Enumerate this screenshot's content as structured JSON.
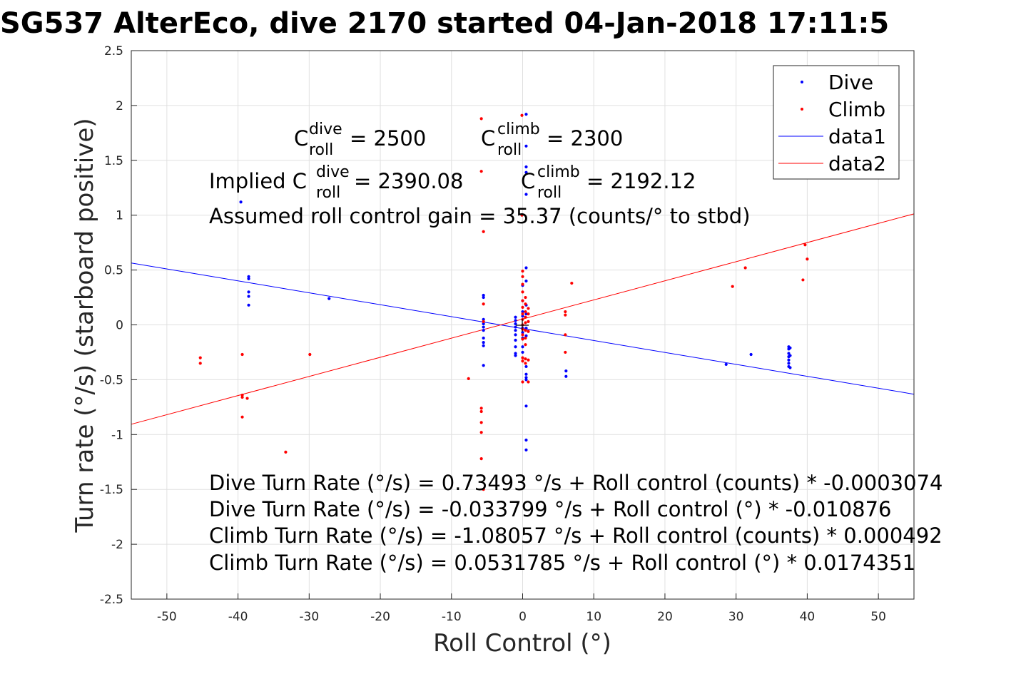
{
  "title": "SG537 AlterEco, dive 2170 started 04-Jan-2018 17:11:5",
  "annotations": {
    "c_roll_dive": {
      "base": "C",
      "sup": "dive",
      "sub": "roll",
      "rest": " = 2500"
    },
    "c_roll_climb": {
      "base": "C",
      "sup": "climb",
      "sub": "roll",
      "rest": " = 2300"
    },
    "implied_prefix": "Implied C",
    "implied_dive": {
      "sup": "dive",
      "sub": "roll",
      "rest": " = 2390.08"
    },
    "implied_climb": {
      "base": "C",
      "sup": "climb",
      "sub": "roll",
      "rest": " = 2192.12"
    },
    "gain": "Assumed roll control gain = 35.37 (counts/° to stbd)",
    "eq1": "Dive Turn Rate (°/s) = 0.73493 °/s + Roll control (counts) * -0.0003074",
    "eq2": "Dive Turn Rate (°/s) = -0.033799 °/s + Roll control (°) * -0.010876",
    "eq3": "Climb Turn Rate (°/s) = -1.08057 °/s + Roll control (counts) * 0.000492",
    "eq4": "Climb Turn Rate (°/s) = 0.0531785 °/s + Roll control (°) * 0.0174351"
  },
  "chart_data": {
    "type": "scatter",
    "xlabel": "Roll Control (°)",
    "ylabel": "Turn rate (°/s) (starboard positive)",
    "xlim": [
      -55,
      55
    ],
    "ylim": [
      -2.5,
      2.5
    ],
    "xticks": [
      -50,
      -40,
      -30,
      -20,
      -10,
      0,
      10,
      20,
      30,
      40,
      50
    ],
    "yticks": [
      2.5,
      2,
      1.5,
      1,
      0.5,
      0,
      -0.5,
      -1,
      -1.5,
      -2,
      -2.5
    ],
    "xtick_labels": [
      "-50",
      "-40",
      "-30",
      "-20",
      "-10",
      "0",
      "10",
      "20",
      "30",
      "40",
      "50"
    ],
    "ytick_labels": [
      "2.5",
      "2",
      "1.5",
      "1",
      "0.5",
      "0",
      "-0.5",
      "-1",
      "-1.5",
      "-2",
      "-2.5"
    ],
    "grid": true,
    "legend_position": "top-right",
    "legend": [
      "Dive",
      "Climb",
      "data1",
      "data2"
    ],
    "series": [
      {
        "name": "Dive",
        "kind": "points",
        "color": "#0000ff",
        "points": [
          [
            -39.6,
            1.12
          ],
          [
            -38.5,
            0.44
          ],
          [
            -38.5,
            0.42
          ],
          [
            -38.5,
            0.3
          ],
          [
            -38.5,
            0.26
          ],
          [
            -38.5,
            0.18
          ],
          [
            -27.2,
            0.24
          ],
          [
            -5.5,
            0.27
          ],
          [
            -5.5,
            0.25
          ],
          [
            -5.5,
            0.05
          ],
          [
            -5.5,
            0.01
          ],
          [
            -5.5,
            -0.02
          ],
          [
            -5.5,
            -0.05
          ],
          [
            -5.5,
            -0.12
          ],
          [
            -5.5,
            -0.16
          ],
          [
            -5.5,
            -0.19
          ],
          [
            -5.5,
            -0.37
          ],
          [
            -1.0,
            0.07
          ],
          [
            -1.0,
            0.04
          ],
          [
            -1.0,
            0.01
          ],
          [
            -1.0,
            -0.02
          ],
          [
            -1.0,
            -0.05
          ],
          [
            -1.0,
            -0.09
          ],
          [
            -1.0,
            -0.14
          ],
          [
            -1.0,
            -0.2
          ],
          [
            -1.0,
            -0.26
          ],
          [
            -1.0,
            -0.28
          ],
          [
            0.0,
            0.36
          ],
          [
            0.0,
            0.22
          ],
          [
            0.0,
            0.12
          ],
          [
            0.0,
            0.08
          ],
          [
            0.0,
            -0.03
          ],
          [
            0.0,
            -0.07
          ],
          [
            0.0,
            -0.12
          ],
          [
            0.0,
            -0.2
          ],
          [
            0.0,
            -0.25
          ],
          [
            0.5,
            1.92
          ],
          [
            0.5,
            1.63
          ],
          [
            0.5,
            1.44
          ],
          [
            0.5,
            1.39
          ],
          [
            0.5,
            1.19
          ],
          [
            0.5,
            0.52
          ],
          [
            0.5,
            0.4
          ],
          [
            0.5,
            0.18
          ],
          [
            0.5,
            0.1
          ],
          [
            0.5,
            -0.03
          ],
          [
            0.5,
            -0.1
          ],
          [
            0.5,
            -0.38
          ],
          [
            0.5,
            -0.45
          ],
          [
            0.5,
            -0.48
          ],
          [
            0.5,
            -0.5
          ],
          [
            0.5,
            -0.74
          ],
          [
            0.5,
            -1.05
          ],
          [
            0.5,
            -1.14
          ],
          [
            6.1,
            -0.42
          ],
          [
            6.1,
            -0.47
          ],
          [
            28.6,
            -0.36
          ],
          [
            32.1,
            -0.27
          ],
          [
            37.4,
            -0.2
          ],
          [
            37.4,
            -0.22
          ],
          [
            37.4,
            -0.26
          ],
          [
            37.4,
            -0.29
          ],
          [
            37.4,
            -0.32
          ],
          [
            37.4,
            -0.35
          ],
          [
            37.4,
            -0.38
          ],
          [
            37.6,
            -0.21
          ],
          [
            37.6,
            -0.28
          ],
          [
            37.6,
            -0.39
          ]
        ]
      },
      {
        "name": "Climb",
        "kind": "points",
        "color": "#ff0000",
        "points": [
          [
            -45.3,
            -0.3
          ],
          [
            -45.3,
            -0.35
          ],
          [
            -39.4,
            -0.27
          ],
          [
            -39.4,
            -0.64
          ],
          [
            -39.4,
            -0.66
          ],
          [
            -39.4,
            -0.84
          ],
          [
            -38.7,
            -0.67
          ],
          [
            -33.3,
            -1.16
          ],
          [
            -29.9,
            -0.27
          ],
          [
            -7.6,
            -0.49
          ],
          [
            -5.8,
            1.88
          ],
          [
            -5.8,
            1.4
          ],
          [
            -5.5,
            0.85
          ],
          [
            -5.5,
            0.19
          ],
          [
            -5.5,
            0.03
          ],
          [
            -5.8,
            -0.76
          ],
          [
            -5.8,
            -0.79
          ],
          [
            -5.8,
            -0.89
          ],
          [
            -5.8,
            -0.98
          ],
          [
            -5.8,
            -1.22
          ],
          [
            -5.5,
            -1.5
          ],
          [
            -0.1,
            1.91
          ],
          [
            -0.1,
            1.0
          ],
          [
            0.0,
            0.49
          ],
          [
            0.0,
            0.44
          ],
          [
            0.0,
            0.37
          ],
          [
            0.0,
            0.3
          ],
          [
            0.0,
            0.22
          ],
          [
            0.0,
            0.16
          ],
          [
            0.0,
            0.1
          ],
          [
            0.0,
            0.05
          ],
          [
            0.0,
            0.0
          ],
          [
            0.0,
            -0.04
          ],
          [
            0.0,
            -0.09
          ],
          [
            0.0,
            -0.13
          ],
          [
            0.0,
            -0.3
          ],
          [
            0.0,
            -0.33
          ],
          [
            0.0,
            -0.52
          ],
          [
            0.4,
            0.25
          ],
          [
            0.4,
            0.19
          ],
          [
            0.4,
            0.12
          ],
          [
            0.4,
            0.07
          ],
          [
            0.4,
            0.02
          ],
          [
            0.4,
            -0.05
          ],
          [
            0.4,
            -0.12
          ],
          [
            0.4,
            -0.18
          ],
          [
            0.4,
            -0.31
          ],
          [
            0.4,
            -0.35
          ],
          [
            0.8,
            0.15
          ],
          [
            0.8,
            0.1
          ],
          [
            0.8,
            0.03
          ],
          [
            0.8,
            -0.06
          ],
          [
            0.8,
            -0.32
          ],
          [
            0.8,
            -0.52
          ],
          [
            6.0,
            0.12
          ],
          [
            6.0,
            0.09
          ],
          [
            6.0,
            -0.09
          ],
          [
            6.0,
            -0.25
          ],
          [
            6.9,
            0.38
          ],
          [
            29.5,
            0.35
          ],
          [
            31.3,
            0.52
          ],
          [
            39.4,
            0.41
          ],
          [
            39.7,
            0.73
          ],
          [
            40.0,
            0.6
          ]
        ]
      },
      {
        "name": "data1",
        "kind": "line",
        "color": "#0000ff",
        "intercept": -0.033799,
        "slope": -0.010876
      },
      {
        "name": "data2",
        "kind": "line",
        "color": "#ff0000",
        "intercept": 0.0531785,
        "slope": 0.0174351
      }
    ]
  }
}
